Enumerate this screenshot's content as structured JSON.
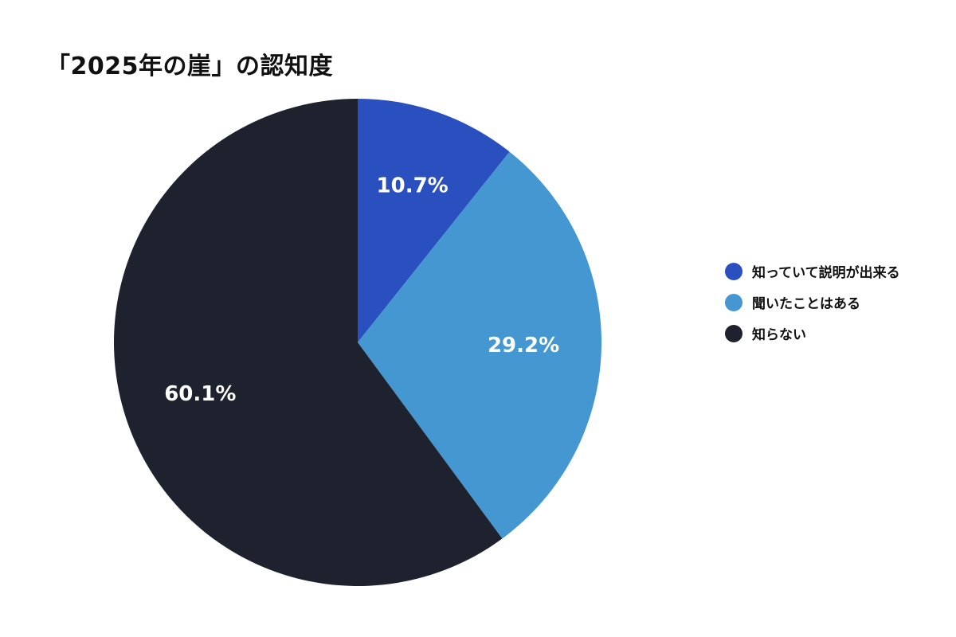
{
  "chart_data": {
    "type": "pie",
    "title": "「2025年の崖」の認知度",
    "slices": [
      {
        "label": "知っていて説明が出来る",
        "value": 10.7,
        "display": "10.7%",
        "color": "#2a4fbf"
      },
      {
        "label": "聞いたことはある",
        "value": 29.2,
        "display": "29.2%",
        "color": "#4497d0"
      },
      {
        "label": "知らない",
        "value": 60.1,
        "display": "60.1%",
        "color": "#1e222e"
      }
    ],
    "start": "12 o'clock",
    "direction": "clockwise",
    "legend_placement": "right"
  }
}
